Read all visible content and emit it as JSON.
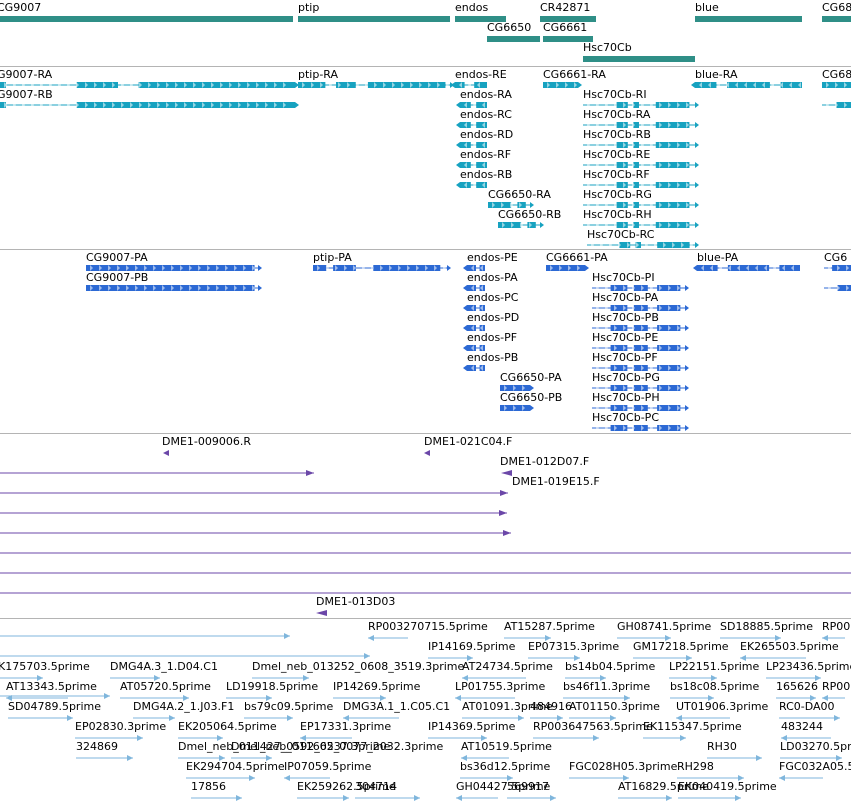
{
  "colors": {
    "gene": "#2f8f87",
    "transcript_fb": "#17a2c0",
    "transcript_rs": "#2c69d4",
    "est": "#6b47a8",
    "primer": "#7fb6dc",
    "track_border": "#b4b4b4",
    "label": "#000000"
  },
  "tracks": {
    "genes": [
      "CG9007",
      "ptip",
      "endos",
      "CR42871",
      "CG6650",
      "CG6661",
      "Hsc70Cb",
      "blue",
      "CG68"
    ],
    "flybase_transcripts": [
      "G9007-RA",
      "G9007-RB",
      "ptip-RA",
      "endos-RE",
      "endos-RA",
      "endos-RC",
      "endos-RD",
      "endos-RF",
      "endos-RB",
      "CG6650-RA",
      "CG6650-RB",
      "CG6661-RA",
      "Hsc70Cb-RI",
      "Hsc70Cb-RA",
      "Hsc70Cb-RB",
      "Hsc70Cb-RE",
      "Hsc70Cb-RF",
      "Hsc70Cb-RG",
      "Hsc70Cb-RH",
      "Hsc70Cb-RC",
      "blue-RA",
      "CG68"
    ],
    "refseq_transcripts": [
      "CG9007-PA",
      "CG9007-PB",
      "ptip-PA",
      "endos-PE",
      "endos-PA",
      "endos-PC",
      "endos-PD",
      "endos-PF",
      "endos-PB",
      "CG6650-PA",
      "CG6650-PB",
      "CG6661-PA",
      "Hsc70Cb-PI",
      "Hsc70Cb-PA",
      "Hsc70Cb-PB",
      "Hsc70Cb-PE",
      "Hsc70Cb-PF",
      "Hsc70Cb-PG",
      "Hsc70Cb-PH",
      "Hsc70Cb-PC",
      "blue-PA",
      "CG6"
    ],
    "ests": [
      "DME1-009006.R",
      "DME1-021C04.F",
      "DME1-012D07.F",
      "DME1-019E15.F",
      "DME1-013D03"
    ],
    "primers": [
      "RP003270715.5prime",
      "AT15287.5prime",
      "GH08741.5prime",
      "SD18885.5prime",
      "RP00",
      "IP14169.5prime",
      "EP07315.3prime",
      "GM17218.5prime",
      "EK265503.5prime",
      "K175703.5prime",
      "DMG4A.3_1.D04.C1",
      "Dmel_neb_013252_0608_3519.3prime",
      "AT24734.5prime",
      "bs14b04.5prime",
      "LP22151.5prime",
      "LP23436.5prime",
      "AT13343.5prime",
      "AT05720.5prime",
      "LD19918.5prime",
      "IP14269.5prime",
      "LP01755.3prime",
      "bs46f11.3prime",
      "bs18c08.5prime",
      "165626",
      "RP00",
      "SD04789.5prime",
      "DMG4A.2_1.J03.F1",
      "bs79c09.5prime",
      "DMG3A.1_1.C05.C1",
      "AT01091.3prime",
      "484916",
      "AT01150.3prime",
      "UT01906.3prime",
      "RC0-DA00",
      "EP02830.3prime",
      "EK205064.5prime",
      "EP17331.3prime",
      "IP14369.5prime",
      "RP003647563.5prime",
      "EK115347.5prime",
      "483244",
      "324869",
      "Dmel_neb_011427_0592_0537.3prime",
      "Dmel_neb_011662_0077_2032.3prime",
      "AT10519.5prime",
      "RH30",
      "LD03270.5prime",
      "EK294704.5prime",
      "IP07059.5prime",
      "bs36d12.5prime",
      "FGC028H05.3prime",
      "RH298",
      "FGC032A05.5prime",
      "17856",
      "EK259262.5prime",
      "304714",
      "GH04427.5prime",
      "569917",
      "AT16829.5prime",
      "EK040419.5prime"
    ]
  }
}
